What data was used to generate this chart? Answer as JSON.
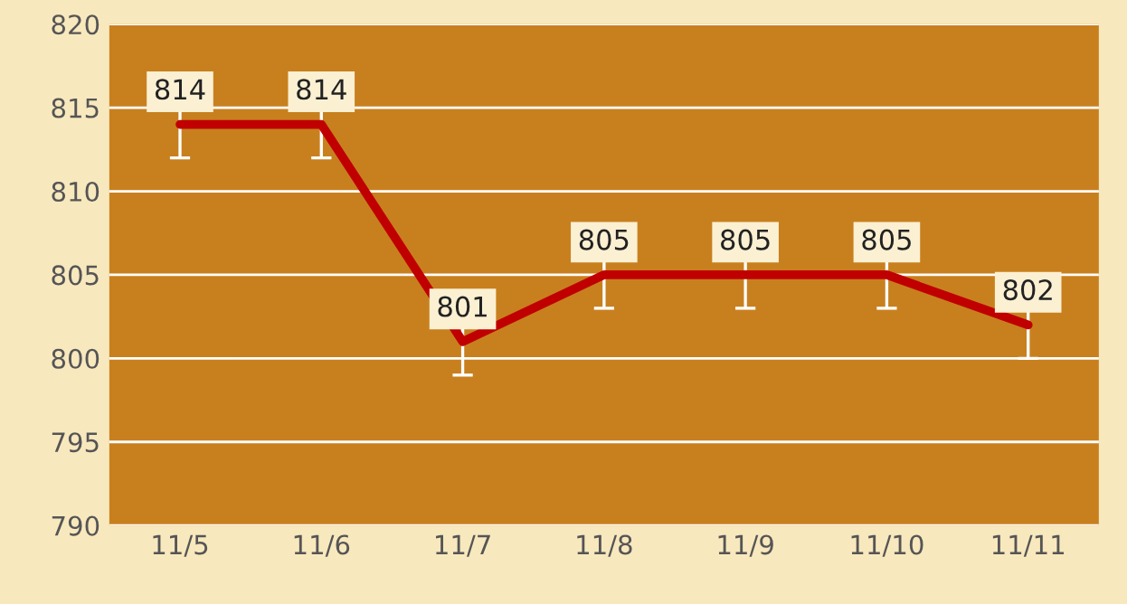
{
  "chart_data": {
    "type": "line",
    "categories": [
      "11/5",
      "11/6",
      "11/7",
      "11/8",
      "11/9",
      "11/10",
      "11/11"
    ],
    "series": [
      {
        "color": "#c00000",
        "values": [
          814,
          814,
          801,
          805,
          805,
          805,
          802
        ],
        "errors": [
          2,
          2,
          2,
          2,
          2,
          2,
          2
        ]
      }
    ],
    "ylim": [
      790,
      820
    ],
    "yticks": [
      790,
      795,
      800,
      805,
      810,
      815,
      820
    ],
    "grid": "y",
    "data_labels": true,
    "marker": "none",
    "line_style": "solid",
    "legend": false
  }
}
